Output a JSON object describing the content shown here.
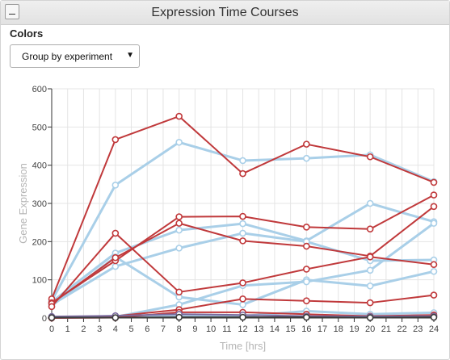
{
  "window": {
    "title": "Expression Time Courses",
    "minimize_label": "_"
  },
  "controls": {
    "colors_label": "Colors",
    "color_select": {
      "selected": "Group by experiment",
      "arrow": "▼"
    }
  },
  "colors": {
    "red": "#c0393b",
    "blue": "#a9cfe8",
    "purple": "#7b6b9e",
    "dark": "#3c3c3c",
    "grid": "#e4e4e4"
  },
  "chart_data": {
    "type": "line",
    "xlabel": "Time [hrs]",
    "ylabel": "Gene Expression",
    "xlim": [
      0,
      24
    ],
    "ylim": [
      0,
      600
    ],
    "x_ticks": [
      0,
      1,
      2,
      3,
      4,
      5,
      6,
      7,
      8,
      9,
      10,
      11,
      12,
      13,
      14,
      15,
      16,
      17,
      18,
      19,
      20,
      21,
      22,
      23,
      24
    ],
    "y_ticks": [
      0,
      100,
      200,
      300,
      400,
      500,
      600
    ],
    "grid": true,
    "x": [
      0,
      4,
      8,
      12,
      16,
      20,
      24
    ],
    "series": [
      {
        "group": "red",
        "values": [
          50,
          467,
          528,
          378,
          455,
          422,
          355
        ]
      },
      {
        "group": "blue",
        "values": [
          45,
          348,
          460,
          412,
          418,
          427,
          357
        ]
      },
      {
        "group": "red",
        "values": [
          40,
          150,
          265,
          266,
          238,
          233,
          322
        ]
      },
      {
        "group": "red",
        "values": [
          38,
          158,
          248,
          202,
          188,
          162,
          292
        ]
      },
      {
        "group": "blue",
        "values": [
          42,
          170,
          230,
          247,
          202,
          300,
          252
        ]
      },
      {
        "group": "blue",
        "values": [
          35,
          135,
          183,
          222,
          200,
          150,
          152
        ]
      },
      {
        "group": "red",
        "values": [
          30,
          222,
          68,
          92,
          128,
          160,
          140
        ]
      },
      {
        "group": "blue",
        "values": [
          32,
          160,
          55,
          35,
          100,
          84,
          122
        ]
      },
      {
        "group": "red",
        "values": [
          2,
          5,
          22,
          50,
          45,
          40,
          60
        ]
      },
      {
        "group": "blue",
        "values": [
          1,
          3,
          35,
          85,
          95,
          125,
          248
        ]
      },
      {
        "group": "blue",
        "values": [
          2,
          3,
          8,
          5,
          18,
          10,
          14
        ]
      },
      {
        "group": "red",
        "values": [
          0,
          1,
          15,
          15,
          10,
          5,
          8
        ]
      },
      {
        "group": "purple",
        "values": [
          4,
          6,
          10,
          8,
          5,
          4,
          5
        ]
      },
      {
        "group": "dark",
        "values": [
          1,
          1,
          2,
          2,
          2,
          1,
          2
        ]
      }
    ]
  }
}
